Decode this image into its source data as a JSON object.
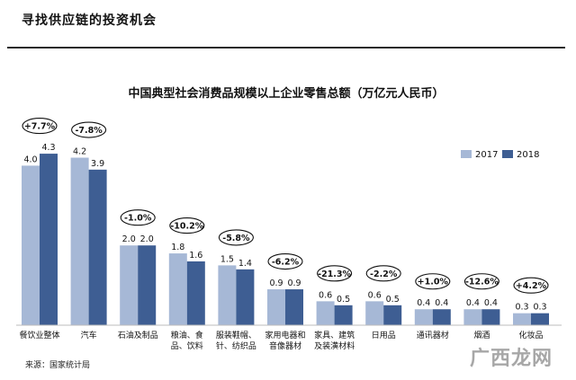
{
  "header": {
    "title": "寻找供应链的投资机会"
  },
  "footer": {
    "source": "来源：国家统计局"
  },
  "watermark": "广西龙网",
  "chart_data": {
    "type": "bar",
    "title": "中国典型社会消费品规模以上企业零售总额（万亿元人民币）",
    "legend_position": "top-right",
    "categories": [
      [
        "餐饮业整体"
      ],
      [
        "汽车"
      ],
      [
        "石油及制品"
      ],
      [
        "粮油、食",
        "品、饮料"
      ],
      [
        "服装鞋帽、",
        "针、纺织品"
      ],
      [
        "家用电器和",
        "音像器材"
      ],
      [
        "家具、建筑",
        "及装潢材料"
      ],
      [
        "日用品"
      ],
      [
        "通讯器材"
      ],
      [
        "烟酒"
      ],
      [
        "化妆品"
      ]
    ],
    "series": [
      {
        "name": "2017",
        "color": "#a6b8d6",
        "values": [
          4.0,
          4.2,
          2.0,
          1.8,
          1.5,
          0.9,
          0.6,
          0.6,
          0.4,
          0.4,
          0.3
        ]
      },
      {
        "name": "2018",
        "color": "#3e5e93",
        "values": [
          4.3,
          3.9,
          2.0,
          1.6,
          1.4,
          0.9,
          0.5,
          0.5,
          0.4,
          0.4,
          0.3
        ]
      }
    ],
    "value_labels": [
      [
        "4.0",
        "4.3"
      ],
      [
        "4.2",
        "3.9"
      ],
      [
        "2.0",
        "2.0"
      ],
      [
        "1.8",
        "1.6"
      ],
      [
        "1.5",
        "1.4"
      ],
      [
        "0.9",
        "0.9"
      ],
      [
        "0.6",
        "0.5"
      ],
      [
        "0.6",
        "0.5"
      ],
      [
        "0.4",
        "0.4"
      ],
      [
        "0.4",
        "0.4"
      ],
      [
        "0.3",
        "0.3"
      ]
    ],
    "growth_labels": [
      "+7.7%",
      "-7.8%",
      "-1.0%",
      "-10.2%",
      "-5.8%",
      "-6.2%",
      "-21.3%",
      "-2.2%",
      "+1.0%",
      "-12.6%",
      "+4.2%"
    ],
    "ylim": [
      0,
      4.6
    ]
  }
}
